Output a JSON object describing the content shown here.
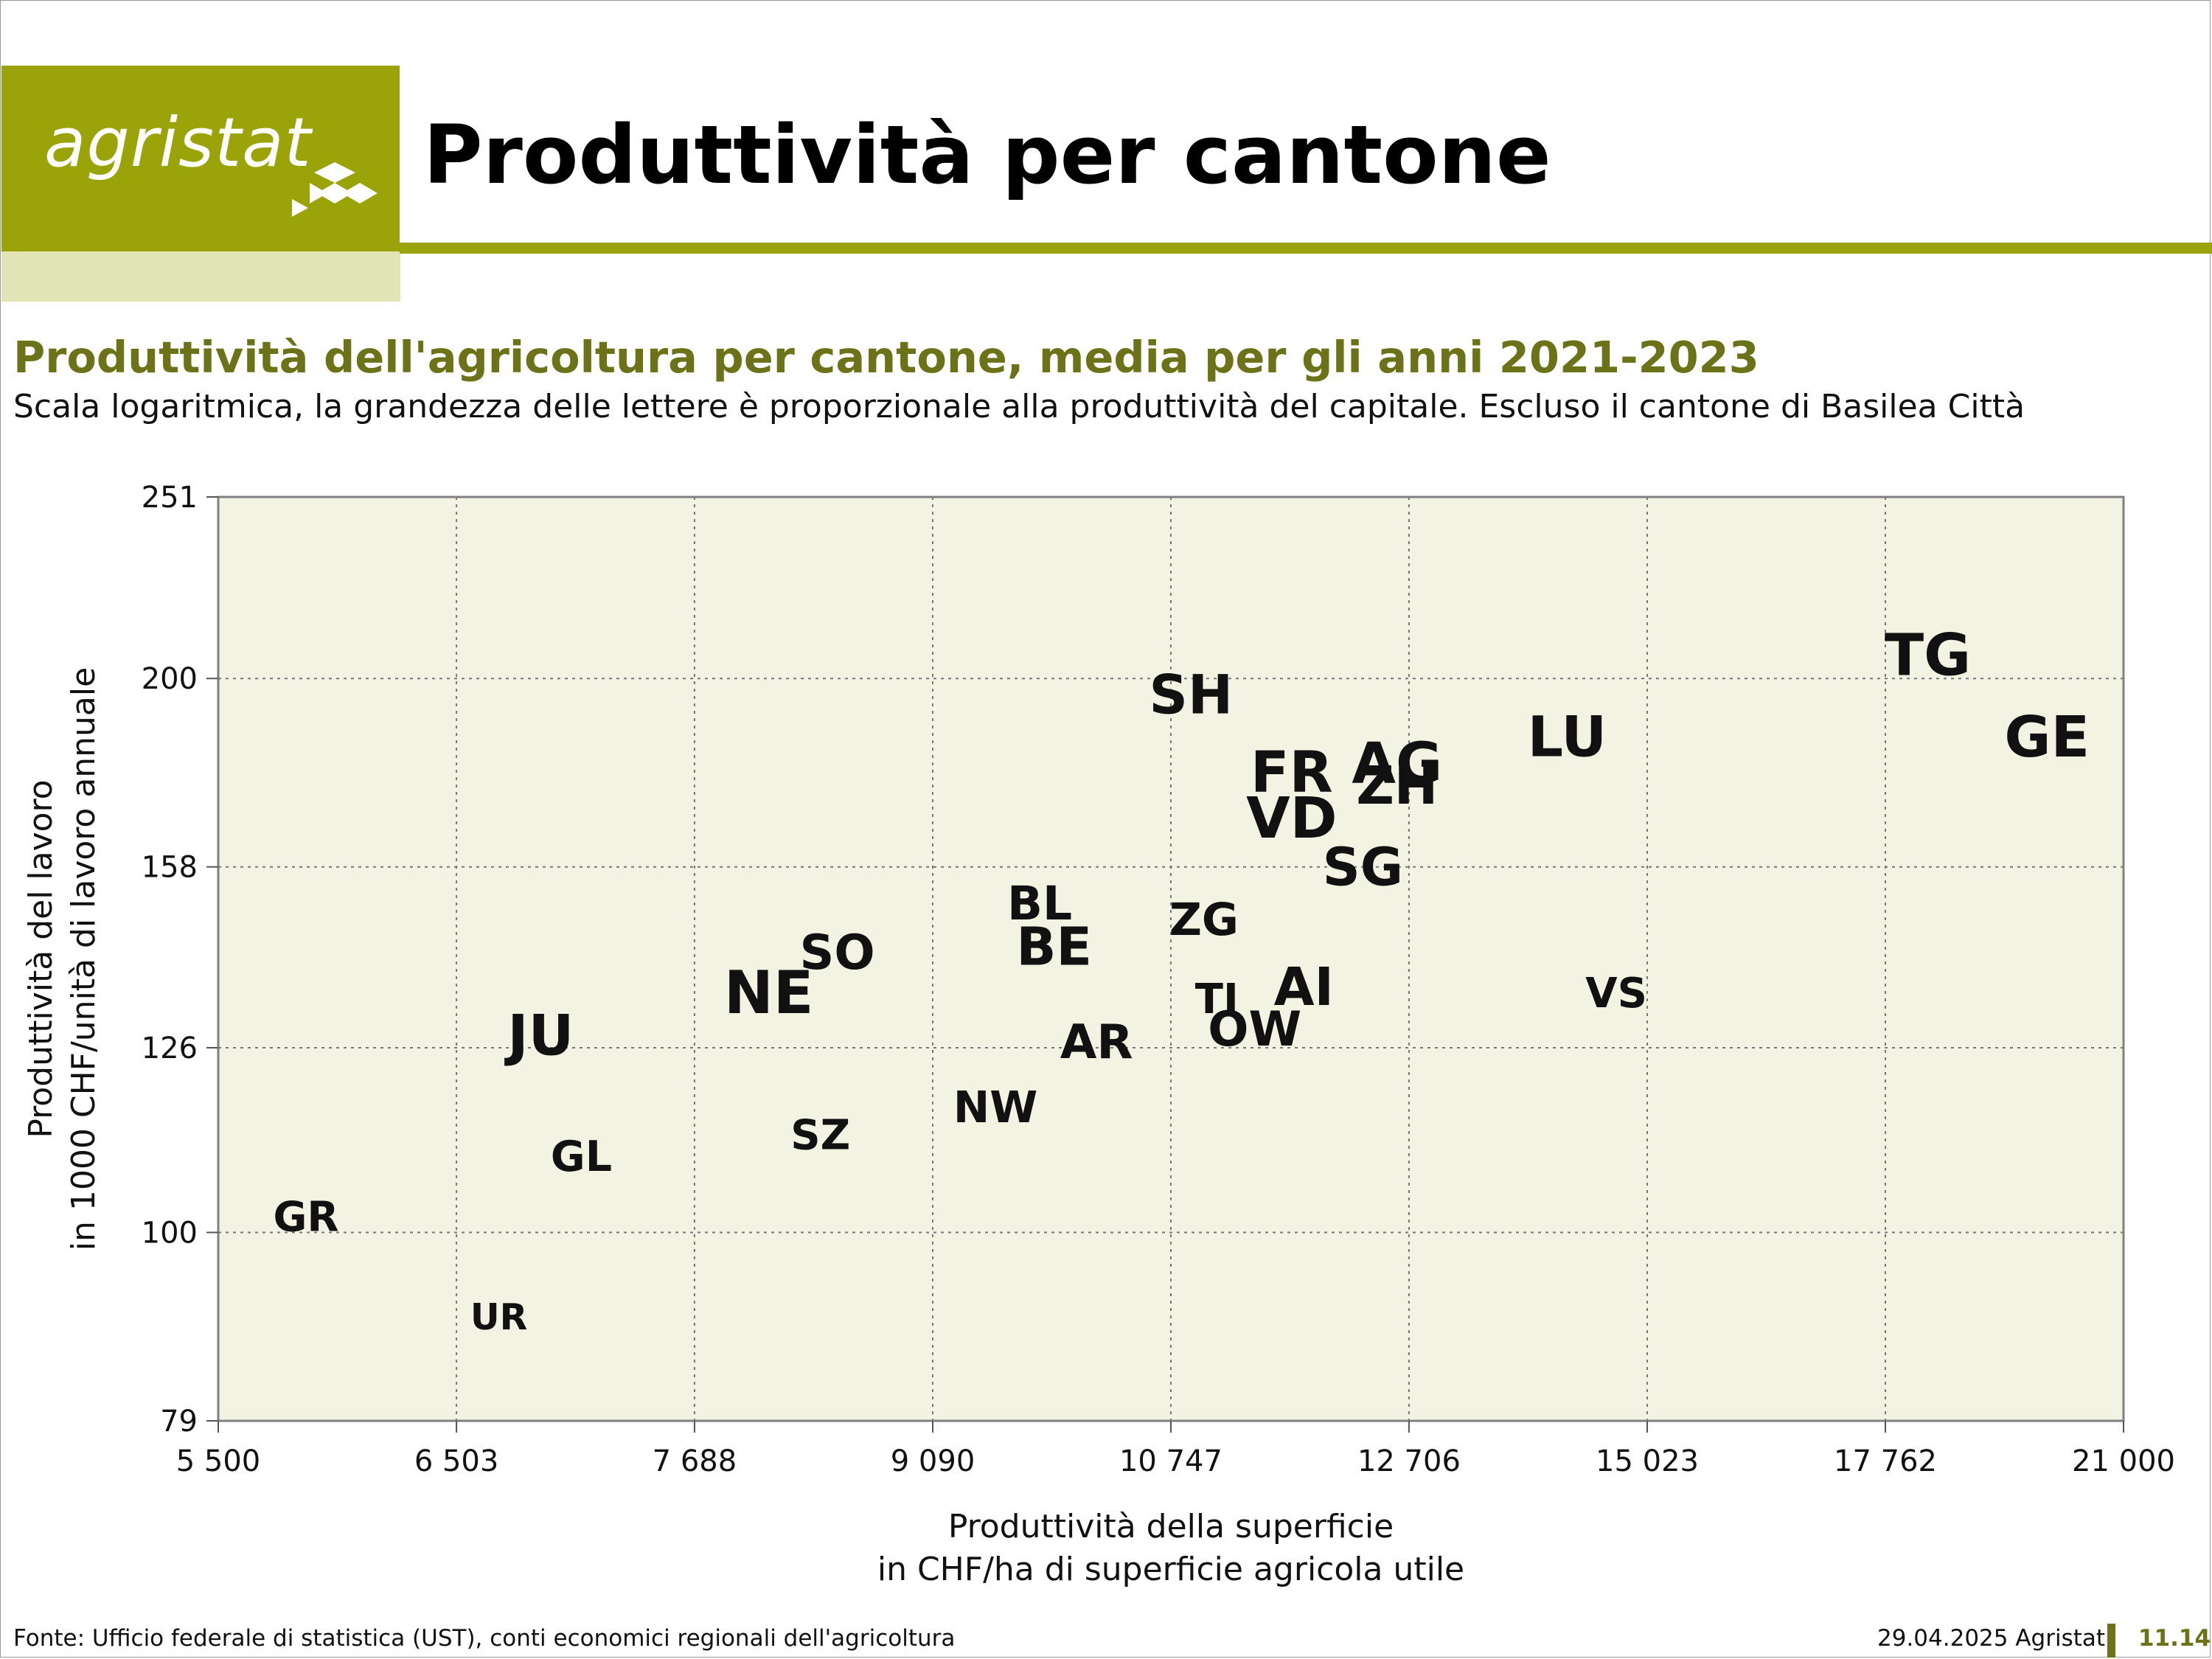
{
  "header": {
    "logo_text": "agristat",
    "title": "Produttività per cantone"
  },
  "chart_title": "Produttività dell'agricoltura per cantone, media per gli anni 2021-2023",
  "chart_subtitle": "Scala logaritmica, la grandezza delle lettere è proporzionale alla produttività del capitale. Escluso il cantone di Basilea Città",
  "colors": {
    "brand": "#9aa307",
    "brand_light": "#e1e4b4",
    "title_green": "#6b7218",
    "plot_background": "#f3f3e3"
  },
  "chart_data": {
    "type": "scatter",
    "xscale": "log",
    "yscale": "log",
    "xlim": [
      5500,
      21000
    ],
    "ylim": [
      79,
      251
    ],
    "xticks": [
      5500,
      6503,
      7688,
      9090,
      10747,
      12706,
      15023,
      17762,
      21000
    ],
    "xtick_labels": [
      "5 500",
      "6 503",
      "7 688",
      "9 090",
      "10 747",
      "12 706",
      "15 023",
      "17 762",
      "21 000"
    ],
    "yticks": [
      79,
      100,
      126,
      158,
      200,
      251
    ],
    "ytick_labels": [
      "79",
      "100",
      "126",
      "158",
      "200",
      "251"
    ],
    "xlabel": [
      "Produttività della superficie",
      "in CHF/ha di superficie agricola utile"
    ],
    "ylabel": [
      "Produttività del lavoro",
      "in 1000 CHF/unità di lavoro annuale"
    ],
    "grid": true,
    "marker": "text label, size proportional to capital productivity",
    "points": [
      {
        "label": "TG",
        "x": 18300,
        "y": 206,
        "size": 1.0
      },
      {
        "label": "GE",
        "x": 19900,
        "y": 186,
        "size": 0.97
      },
      {
        "label": "LU",
        "x": 14200,
        "y": 186,
        "size": 0.95
      },
      {
        "label": "SH",
        "x": 10900,
        "y": 196,
        "size": 0.9
      },
      {
        "label": "AG",
        "x": 12600,
        "y": 180,
        "size": 0.97
      },
      {
        "label": "FR",
        "x": 11700,
        "y": 178,
        "size": 0.97
      },
      {
        "label": "ZH",
        "x": 12600,
        "y": 175,
        "size": 0.85
      },
      {
        "label": "VD",
        "x": 11700,
        "y": 168,
        "size": 0.97
      },
      {
        "label": "SG",
        "x": 12300,
        "y": 158,
        "size": 0.85
      },
      {
        "label": "BL",
        "x": 9800,
        "y": 151,
        "size": 0.68
      },
      {
        "label": "ZG",
        "x": 11000,
        "y": 148,
        "size": 0.65
      },
      {
        "label": "BE",
        "x": 9900,
        "y": 143,
        "size": 0.85
      },
      {
        "label": "SO",
        "x": 8500,
        "y": 142,
        "size": 0.72
      },
      {
        "label": "NE",
        "x": 8100,
        "y": 135,
        "size": 1.05
      },
      {
        "label": "AI",
        "x": 11800,
        "y": 136,
        "size": 0.85
      },
      {
        "label": "VS",
        "x": 14700,
        "y": 135,
        "size": 0.55
      },
      {
        "label": "TI",
        "x": 11100,
        "y": 134,
        "size": 0.55
      },
      {
        "label": "OW",
        "x": 11400,
        "y": 129,
        "size": 0.72
      },
      {
        "label": "JU",
        "x": 6900,
        "y": 128,
        "size": 0.95
      },
      {
        "label": "AR",
        "x": 10200,
        "y": 127,
        "size": 0.7
      },
      {
        "label": "NW",
        "x": 9500,
        "y": 117,
        "size": 0.6
      },
      {
        "label": "SZ",
        "x": 8400,
        "y": 113,
        "size": 0.55
      },
      {
        "label": "GL",
        "x": 7100,
        "y": 110,
        "size": 0.57
      },
      {
        "label": "GR",
        "x": 5850,
        "y": 102,
        "size": 0.55
      },
      {
        "label": "UR",
        "x": 6700,
        "y": 90,
        "size": 0.4
      }
    ]
  },
  "footer": {
    "source": "Fonte: Ufficio federale di statistica (UST), conti economici regionali dell'agricoltura",
    "date": "29.04.2025 Agristat",
    "page": "11.14"
  }
}
